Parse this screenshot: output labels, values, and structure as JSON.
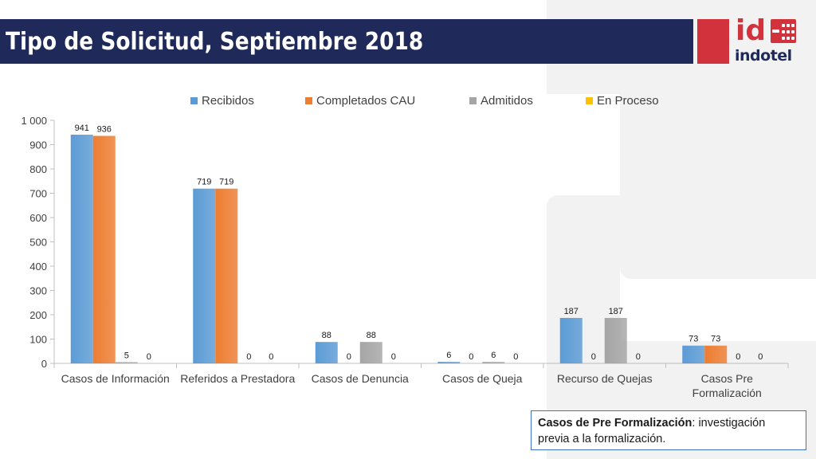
{
  "page": {
    "title": "Tipo de Solicitud, Septiembre 2018"
  },
  "logo": {
    "id_text": "id",
    "word": "indotel",
    "colors": {
      "red": "#d1323c",
      "navy": "#1f2a5a"
    }
  },
  "note": {
    "bold": "Casos de Pre Formalización",
    "text": ": investigación previa a la formalización."
  },
  "chart_data": {
    "type": "bar",
    "categories": [
      [
        "Casos de Información"
      ],
      [
        "Referidos a Prestadora"
      ],
      [
        "Casos de Denuncia"
      ],
      [
        "Casos de Queja"
      ],
      [
        "Recurso de Quejas"
      ],
      [
        "Casos Pre",
        "Formalización"
      ]
    ],
    "series": [
      {
        "name": "Recibidos",
        "color": "#5b9bd5",
        "values": [
          941,
          719,
          88,
          6,
          187,
          73
        ],
        "labels": [
          "941",
          "719",
          "88",
          "6",
          "187",
          "73"
        ]
      },
      {
        "name": "Completados CAU",
        "color": "#ed7d31",
        "values": [
          936,
          719,
          0,
          0,
          0,
          73
        ],
        "labels": [
          "936",
          "719",
          "0",
          "0",
          "0",
          "73"
        ]
      },
      {
        "name": "Admitidos",
        "color": "#a5a5a5",
        "values": [
          5,
          0,
          88,
          6,
          187,
          0
        ],
        "labels": [
          "5",
          "0",
          "88",
          "6",
          "187",
          "0"
        ]
      },
      {
        "name": "En Proceso",
        "color": "#ffc000",
        "values": [
          0,
          0,
          0,
          0,
          0,
          0
        ],
        "labels": [
          "0",
          "0",
          "0",
          "0",
          "0",
          "0"
        ]
      }
    ],
    "y_ticks": [
      0,
      100,
      200,
      300,
      400,
      500,
      600,
      700,
      800,
      900,
      1000
    ],
    "y_tick_labels": [
      "0",
      "100",
      "200",
      "300",
      "400",
      "500",
      "600",
      "700",
      "800",
      "900",
      "1 000"
    ],
    "ylim": [
      0,
      1000
    ],
    "grid": false,
    "legend_position": "top"
  }
}
